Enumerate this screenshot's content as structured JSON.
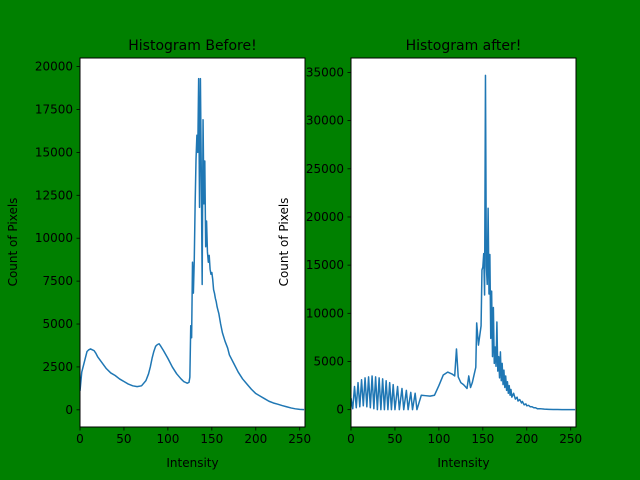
{
  "figure": {
    "background": "#008000",
    "line_color": "#1f77b4"
  },
  "chart_data": [
    {
      "type": "line",
      "title": "Histogram Before!",
      "xlabel": "Intensity",
      "ylabel": "Count of Pixels",
      "xlim": [
        0,
        256
      ],
      "ylim": [
        -1000,
        20500
      ],
      "xticks": [
        "0",
        "50",
        "100",
        "150",
        "200",
        "250"
      ],
      "yticks": [
        "0",
        "2500",
        "5000",
        "7500",
        "10000",
        "12500",
        "15000",
        "17500",
        "20000"
      ],
      "grid": false,
      "series": [
        {
          "x": [
            0,
            2,
            4,
            6,
            8,
            10,
            12,
            14,
            16,
            18,
            20,
            25,
            30,
            35,
            40,
            45,
            50,
            55,
            60,
            65,
            70,
            75,
            78,
            80,
            82,
            84,
            86,
            88,
            90,
            92,
            95,
            100,
            105,
            110,
            115,
            118,
            120,
            122,
            124,
            125,
            126,
            127,
            128,
            129,
            130,
            131,
            132,
            133,
            134,
            135,
            136,
            137,
            138,
            139,
            140,
            141,
            142,
            143,
            144,
            145,
            146,
            147,
            148,
            149,
            150,
            151,
            152,
            153,
            154,
            155,
            156,
            157,
            158,
            160,
            162,
            165,
            168,
            170,
            175,
            180,
            185,
            190,
            195,
            200,
            205,
            210,
            215,
            220,
            225,
            230,
            235,
            240,
            245,
            250,
            255
          ],
          "y": [
            1100,
            2200,
            2600,
            3000,
            3400,
            3500,
            3550,
            3500,
            3450,
            3300,
            3100,
            2750,
            2400,
            2150,
            2000,
            1800,
            1650,
            1500,
            1400,
            1350,
            1400,
            1700,
            2100,
            2500,
            3000,
            3400,
            3700,
            3800,
            3850,
            3700,
            3450,
            3000,
            2500,
            2100,
            1800,
            1650,
            1600,
            1550,
            1600,
            1900,
            4900,
            4200,
            8600,
            6800,
            8700,
            12000,
            14600,
            16000,
            15000,
            19300,
            11800,
            19300,
            13800,
            7300,
            16900,
            12000,
            14500,
            9500,
            11000,
            9200,
            8600,
            9000,
            8200,
            7900,
            8000,
            7600,
            7000,
            6800,
            6500,
            6300,
            6000,
            5800,
            5600,
            5000,
            4500,
            4000,
            3600,
            3200,
            2700,
            2200,
            1800,
            1500,
            1200,
            950,
            800,
            650,
            500,
            400,
            330,
            250,
            180,
            110,
            60,
            30,
            10
          ]
        }
      ]
    },
    {
      "type": "line",
      "title": "Histogram after!",
      "xlabel": "Intensity",
      "ylabel": "Count of Pixels",
      "xlim": [
        0,
        256
      ],
      "ylim": [
        -1800,
        36500
      ],
      "xticks": [
        "0",
        "50",
        "100",
        "150",
        "200",
        "250"
      ],
      "yticks": [
        "0",
        "5000",
        "10000",
        "15000",
        "20000",
        "25000",
        "30000",
        "35000"
      ],
      "grid": false,
      "series": [
        {
          "x": [
            0,
            2,
            4,
            6,
            8,
            10,
            12,
            14,
            16,
            18,
            20,
            22,
            24,
            26,
            28,
            30,
            32,
            34,
            36,
            38,
            40,
            42,
            44,
            46,
            48,
            50,
            53,
            55,
            58,
            60,
            63,
            65,
            68,
            70,
            73,
            75,
            80,
            85,
            90,
            95,
            100,
            105,
            110,
            115,
            118,
            120,
            122,
            124,
            125,
            128,
            130,
            132,
            134,
            136,
            138,
            140,
            142,
            143,
            145,
            148,
            149,
            150,
            151,
            152,
            153,
            154,
            155,
            156,
            157,
            158,
            159,
            160,
            161,
            162,
            163,
            164,
            165,
            166,
            167,
            168,
            169,
            170,
            171,
            172,
            173,
            174,
            175,
            176,
            177,
            178,
            179,
            180,
            181,
            182,
            183,
            185,
            187,
            189,
            190,
            192,
            194,
            195,
            197,
            199,
            200,
            202,
            204,
            206,
            208,
            210,
            212,
            215,
            220,
            225,
            230,
            235,
            240,
            245,
            250,
            255
          ],
          "y": [
            1200,
            100,
            2400,
            200,
            2800,
            300,
            3100,
            400,
            3300,
            300,
            3400,
            200,
            3500,
            100,
            3400,
            0,
            3300,
            0,
            3200,
            0,
            3000,
            0,
            2800,
            0,
            2600,
            0,
            2400,
            0,
            2200,
            0,
            2000,
            0,
            1800,
            0,
            1700,
            0,
            1500,
            1450,
            1400,
            1500,
            2500,
            3600,
            3900,
            3700,
            3500,
            6300,
            3400,
            3000,
            2800,
            2600,
            2400,
            2200,
            3500,
            2300,
            2800,
            3600,
            4400,
            9000,
            6700,
            8700,
            14500,
            14800,
            16200,
            11900,
            34700,
            14900,
            13000,
            20900,
            12000,
            16100,
            7400,
            12300,
            5500,
            10600,
            4800,
            6500,
            4500,
            9100,
            4000,
            5500,
            3300,
            6000,
            3000,
            4800,
            2600,
            4100,
            2300,
            3500,
            2000,
            2900,
            1700,
            2500,
            1500,
            2100,
            1300,
            1700,
            1100,
            1300,
            900,
            1050,
            700,
            850,
            500,
            600,
            400,
            450,
            300,
            300,
            200,
            200,
            100,
            100,
            50,
            30,
            20,
            10,
            0,
            0,
            0,
            0
          ]
        }
      ]
    }
  ]
}
